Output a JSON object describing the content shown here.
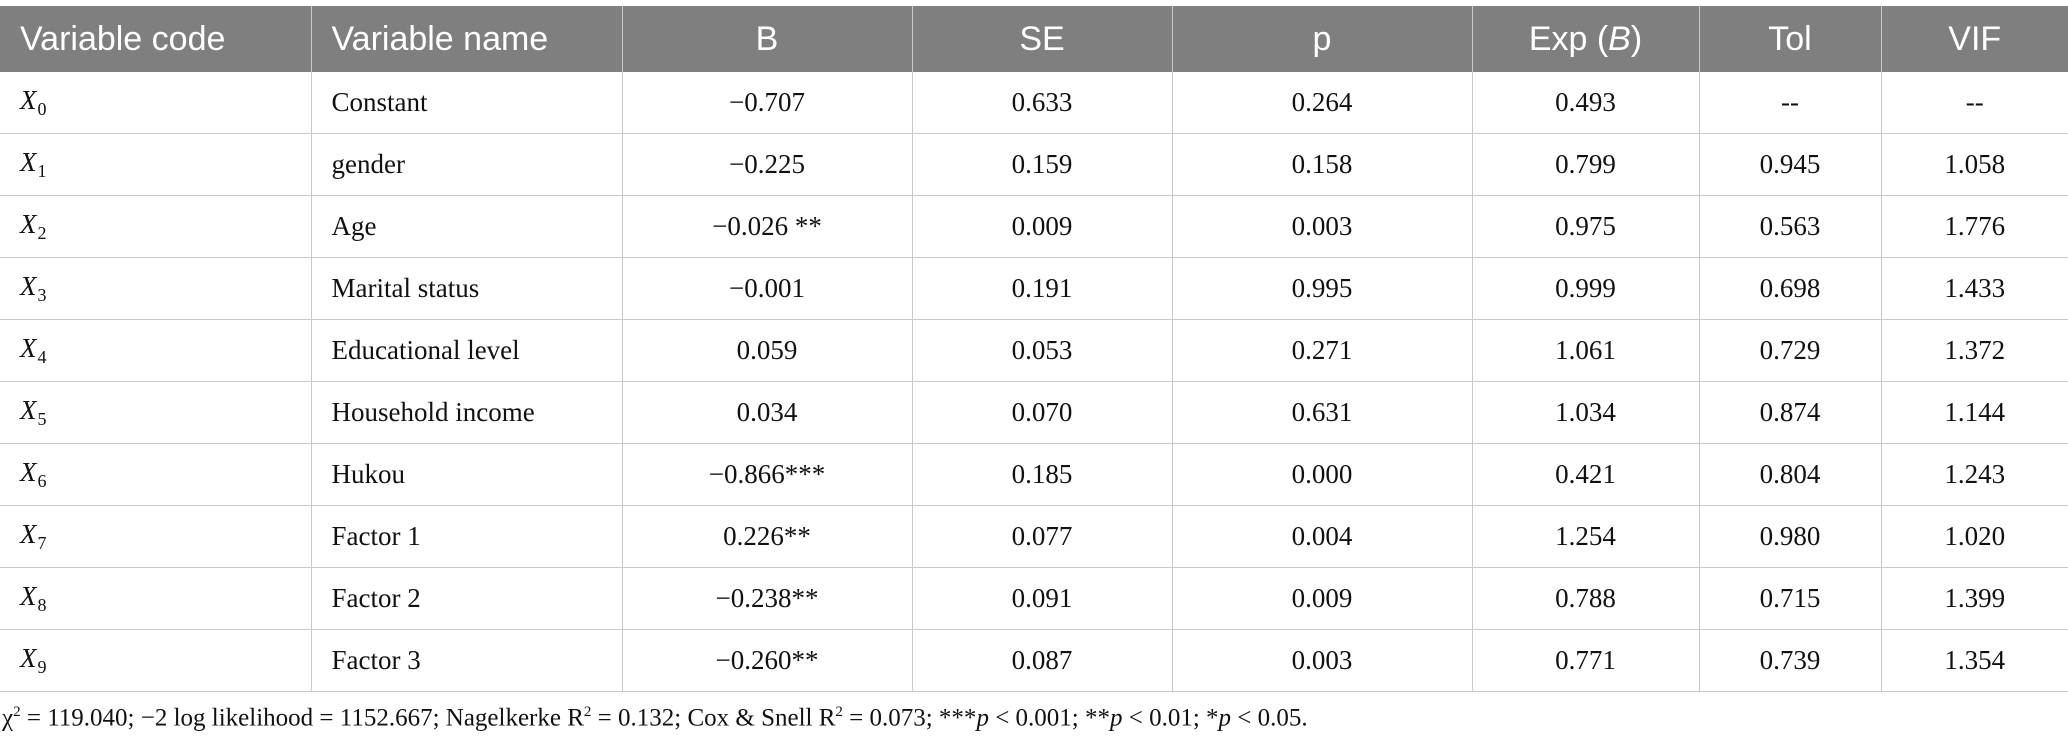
{
  "table": {
    "headers": {
      "code": "Variable code",
      "name": "Variable name",
      "b": "B",
      "se": "SE",
      "p": "p",
      "exp_prefix": "Exp (",
      "exp_italic": "B",
      "exp_suffix": ")",
      "tol": "Tol",
      "vif": "VIF"
    },
    "rows": [
      {
        "code": "X",
        "sub": "0",
        "name": "Constant",
        "b": "−0.707",
        "se": "0.633",
        "p": "0.264",
        "exp": "0.493",
        "tol": "--",
        "vif": "--"
      },
      {
        "code": "X",
        "sub": "1",
        "name": "gender",
        "b": "−0.225",
        "se": "0.159",
        "p": "0.158",
        "exp": "0.799",
        "tol": "0.945",
        "vif": "1.058"
      },
      {
        "code": "X",
        "sub": "2",
        "name": "Age",
        "b": "−0.026 **",
        "se": "0.009",
        "p": "0.003",
        "exp": "0.975",
        "tol": "0.563",
        "vif": "1.776"
      },
      {
        "code": "X",
        "sub": "3",
        "name": "Marital status",
        "b": "−0.001",
        "se": "0.191",
        "p": "0.995",
        "exp": "0.999",
        "tol": "0.698",
        "vif": "1.433"
      },
      {
        "code": "X",
        "sub": "4",
        "name": "Educational level",
        "b": "0.059",
        "se": "0.053",
        "p": "0.271",
        "exp": "1.061",
        "tol": "0.729",
        "vif": "1.372"
      },
      {
        "code": "X",
        "sub": "5",
        "name": "Household income",
        "b": "0.034",
        "se": "0.070",
        "p": "0.631",
        "exp": "1.034",
        "tol": "0.874",
        "vif": "1.144"
      },
      {
        "code": "X",
        "sub": "6",
        "name": "Hukou",
        "b": "−0.866***",
        "se": "0.185",
        "p": "0.000",
        "exp": "0.421",
        "tol": "0.804",
        "vif": "1.243"
      },
      {
        "code": "X",
        "sub": "7",
        "name": "Factor 1",
        "b": "0.226**",
        "se": "0.077",
        "p": "0.004",
        "exp": "1.254",
        "tol": "0.980",
        "vif": "1.020"
      },
      {
        "code": "X",
        "sub": "8",
        "name": "Factor 2",
        "b": "−0.238**",
        "se": "0.091",
        "p": "0.009",
        "exp": "0.788",
        "tol": "0.715",
        "vif": "1.399"
      },
      {
        "code": "X",
        "sub": "9",
        "name": "Factor 3",
        "b": "−0.260**",
        "se": "0.087",
        "p": "0.003",
        "exp": "0.771",
        "tol": "0.739",
        "vif": "1.354"
      }
    ]
  },
  "footnote": {
    "chi_sym": "χ",
    "chi_sup": "2",
    "part1": " = 119.040; −2 log likelihood = 1152.667; Nagelkerke R",
    "sup2": "2",
    "part2": " = 0.132; Cox & Snell R",
    "sup3": "2",
    "part3": " = 0.073; ***",
    "p1": "p",
    "part4": " < 0.001; **",
    "p2": "p",
    "part5": " < 0.01; *",
    "p3": "p",
    "part6": " < 0.05."
  }
}
